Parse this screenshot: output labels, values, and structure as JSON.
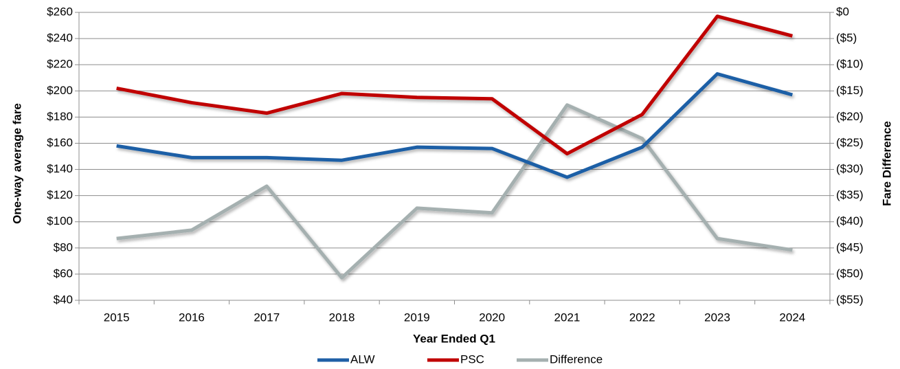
{
  "chart_data": {
    "type": "line",
    "xlabel": "Year Ended Q1",
    "ylabel": "One-way average fare",
    "y2label": "Fare Difference",
    "categories": [
      "2015",
      "2016",
      "2017",
      "2018",
      "2019",
      "2020",
      "2021",
      "2022",
      "2023",
      "2024"
    ],
    "series": [
      {
        "name": "ALW",
        "color": "#1f5fa6",
        "values": [
          158,
          149,
          149,
          147,
          157,
          156,
          134,
          157,
          213,
          197
        ]
      },
      {
        "name": "PSC",
        "color": "#c00000",
        "values": [
          202,
          191,
          183,
          198,
          195,
          194,
          152,
          182,
          257,
          242
        ]
      },
      {
        "name": "Difference",
        "color": "#a5b0b0",
        "axis": "y2",
        "values": [
          -43.2,
          -41.6,
          -33.2,
          -50.7,
          -37.4,
          -38.3,
          -17.7,
          -24.1,
          -43.2,
          -45.4
        ]
      }
    ],
    "ylim": [
      40,
      260
    ],
    "yticks": [
      {
        "value": 40,
        "label": "$40"
      },
      {
        "value": 60,
        "label": "$60"
      },
      {
        "value": 80,
        "label": "$80"
      },
      {
        "value": 100,
        "label": "$100"
      },
      {
        "value": 120,
        "label": "$120"
      },
      {
        "value": 140,
        "label": "$140"
      },
      {
        "value": 160,
        "label": "$160"
      },
      {
        "value": 180,
        "label": "$180"
      },
      {
        "value": 200,
        "label": "$200"
      },
      {
        "value": 220,
        "label": "$220"
      },
      {
        "value": 240,
        "label": "$240"
      },
      {
        "value": 260,
        "label": "$260"
      }
    ],
    "y2lim": [
      -55,
      0
    ],
    "y2ticks": [
      {
        "value": -55,
        "label": "($55)"
      },
      {
        "value": -50,
        "label": "($50)"
      },
      {
        "value": -45,
        "label": "($45)"
      },
      {
        "value": -40,
        "label": "($40)"
      },
      {
        "value": -35,
        "label": "($35)"
      },
      {
        "value": -30,
        "label": "($30)"
      },
      {
        "value": -25,
        "label": "($25)"
      },
      {
        "value": -20,
        "label": "($20)"
      },
      {
        "value": -15,
        "label": "($15)"
      },
      {
        "value": -10,
        "label": "($10)"
      },
      {
        "value": -5,
        "label": "($5)"
      },
      {
        "value": 0,
        "label": "$0"
      }
    ],
    "grid": true,
    "legend": "bottom"
  }
}
